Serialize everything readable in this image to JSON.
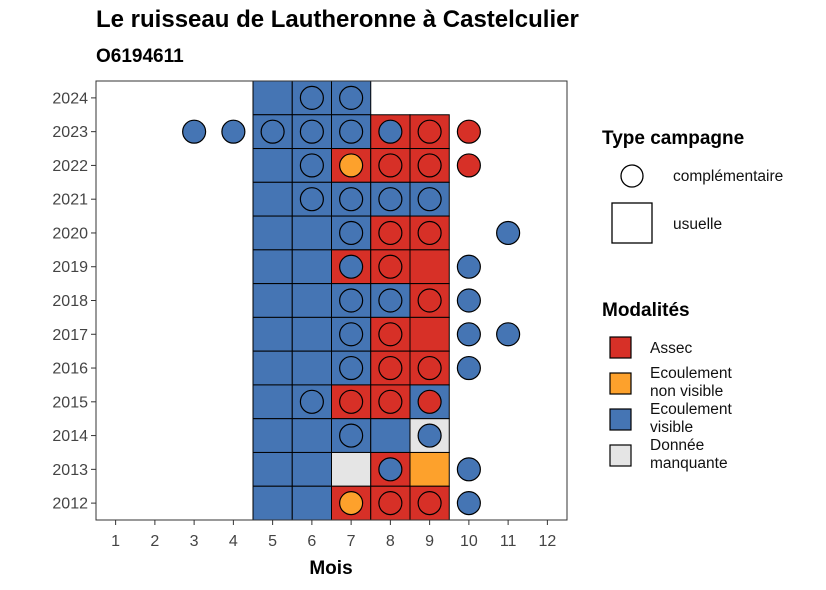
{
  "chart_data": {
    "type": "heatmap",
    "title": "Le ruisseau de Lautheronne à Castelculier",
    "subtitle": "O6194611",
    "xlabel": "Mois",
    "ylabel": "",
    "x_ticks": [
      "1",
      "2",
      "3",
      "4",
      "5",
      "6",
      "7",
      "8",
      "9",
      "10",
      "11",
      "12"
    ],
    "y_ticks": [
      "2012",
      "2013",
      "2014",
      "2015",
      "2016",
      "2017",
      "2018",
      "2019",
      "2020",
      "2021",
      "2022",
      "2023",
      "2024"
    ],
    "xlim": [
      0.5,
      12.5
    ],
    "ylim": [
      2011.5,
      2024.5
    ],
    "colors": {
      "Assec": "#D73027",
      "Ecoulement non visible": "#FDA12C",
      "Ecoulement visible": "#4575B4",
      "Donnée manquante": "#E5E5E5"
    },
    "legend_shape": {
      "title": "Type campagne",
      "items": [
        {
          "shape": "circle",
          "label": "complémentaire"
        },
        {
          "shape": "square",
          "label": "usuelle"
        }
      ]
    },
    "legend_fill": {
      "title": "Modalités",
      "items": [
        {
          "key": "Assec",
          "lines": [
            "Assec"
          ]
        },
        {
          "key": "Ecoulement non visible",
          "lines": [
            "Ecoulement",
            "non visible"
          ]
        },
        {
          "key": "Ecoulement visible",
          "lines": [
            "Ecoulement",
            "visible"
          ]
        },
        {
          "key": "Donnée manquante",
          "lines": [
            "Donnée",
            "manquante"
          ]
        }
      ]
    },
    "usuelle": [
      {
        "year": 2024,
        "months": {
          "5": "Ecoulement visible",
          "6": "Ecoulement visible",
          "7": "Ecoulement visible"
        }
      },
      {
        "year": 2023,
        "months": {
          "5": "Ecoulement visible",
          "6": "Ecoulement visible",
          "7": "Ecoulement visible",
          "8": "Assec",
          "9": "Assec"
        }
      },
      {
        "year": 2022,
        "months": {
          "5": "Ecoulement visible",
          "6": "Ecoulement visible",
          "7": "Assec",
          "8": "Assec",
          "9": "Assec"
        }
      },
      {
        "year": 2021,
        "months": {
          "5": "Ecoulement visible",
          "6": "Ecoulement visible",
          "7": "Ecoulement visible",
          "8": "Ecoulement visible",
          "9": "Ecoulement visible"
        }
      },
      {
        "year": 2020,
        "months": {
          "5": "Ecoulement visible",
          "6": "Ecoulement visible",
          "7": "Ecoulement visible",
          "8": "Assec",
          "9": "Assec"
        }
      },
      {
        "year": 2019,
        "months": {
          "5": "Ecoulement visible",
          "6": "Ecoulement visible",
          "7": "Assec",
          "8": "Assec",
          "9": "Assec"
        }
      },
      {
        "year": 2018,
        "months": {
          "5": "Ecoulement visible",
          "6": "Ecoulement visible",
          "7": "Ecoulement visible",
          "8": "Ecoulement visible",
          "9": "Assec"
        }
      },
      {
        "year": 2017,
        "months": {
          "5": "Ecoulement visible",
          "6": "Ecoulement visible",
          "7": "Ecoulement visible",
          "8": "Assec",
          "9": "Assec"
        }
      },
      {
        "year": 2016,
        "months": {
          "5": "Ecoulement visible",
          "6": "Ecoulement visible",
          "7": "Ecoulement visible",
          "8": "Assec",
          "9": "Assec"
        }
      },
      {
        "year": 2015,
        "months": {
          "5": "Ecoulement visible",
          "6": "Ecoulement visible",
          "7": "Assec",
          "8": "Assec",
          "9": "Ecoulement visible"
        }
      },
      {
        "year": 2014,
        "months": {
          "5": "Ecoulement visible",
          "6": "Ecoulement visible",
          "7": "Ecoulement visible",
          "8": "Ecoulement visible",
          "9": "Donnée manquante"
        }
      },
      {
        "year": 2013,
        "months": {
          "5": "Ecoulement visible",
          "6": "Ecoulement visible",
          "7": "Donnée manquante",
          "8": "Assec",
          "9": "Ecoulement non visible"
        }
      },
      {
        "year": 2012,
        "months": {
          "5": "Ecoulement visible",
          "6": "Ecoulement visible",
          "7": "Assec",
          "8": "Assec",
          "9": "Assec"
        }
      }
    ],
    "complementaire": [
      {
        "year": 2024,
        "months": {
          "6": "Ecoulement visible",
          "7": "Ecoulement visible"
        }
      },
      {
        "year": 2023,
        "months": {
          "3": "Ecoulement visible",
          "4": "Ecoulement visible",
          "5": "Ecoulement visible",
          "6": "Ecoulement visible",
          "7": "Ecoulement visible",
          "8": "Ecoulement visible",
          "9": "Assec",
          "10": "Assec"
        }
      },
      {
        "year": 2022,
        "months": {
          "6": "Ecoulement visible",
          "7": "Ecoulement non visible",
          "8": "Assec",
          "9": "Assec",
          "10": "Assec"
        }
      },
      {
        "year": 2021,
        "months": {
          "6": "Ecoulement visible",
          "7": "Ecoulement visible",
          "8": "Ecoulement visible",
          "9": "Ecoulement visible"
        }
      },
      {
        "year": 2020,
        "months": {
          "7": "Ecoulement visible",
          "8": "Assec",
          "9": "Assec",
          "11": "Ecoulement visible"
        }
      },
      {
        "year": 2019,
        "months": {
          "7": "Ecoulement visible",
          "8": "Assec",
          "10": "Ecoulement visible"
        }
      },
      {
        "year": 2018,
        "months": {
          "7": "Ecoulement visible",
          "8": "Ecoulement visible",
          "9": "Assec",
          "10": "Ecoulement visible"
        }
      },
      {
        "year": 2017,
        "months": {
          "7": "Ecoulement visible",
          "8": "Assec",
          "10": "Ecoulement visible",
          "11": "Ecoulement visible"
        }
      },
      {
        "year": 2016,
        "months": {
          "7": "Ecoulement visible",
          "8": "Assec",
          "9": "Assec",
          "10": "Ecoulement visible"
        }
      },
      {
        "year": 2015,
        "months": {
          "6": "Ecoulement visible",
          "7": "Assec",
          "8": "Assec",
          "9": "Assec"
        }
      },
      {
        "year": 2014,
        "months": {
          "7": "Ecoulement visible",
          "9": "Ecoulement visible"
        }
      },
      {
        "year": 2013,
        "months": {
          "8": "Ecoulement visible",
          "10": "Ecoulement visible"
        }
      },
      {
        "year": 2012,
        "months": {
          "7": "Ecoulement non visible",
          "8": "Assec",
          "9": "Assec",
          "10": "Ecoulement visible"
        }
      }
    ]
  }
}
